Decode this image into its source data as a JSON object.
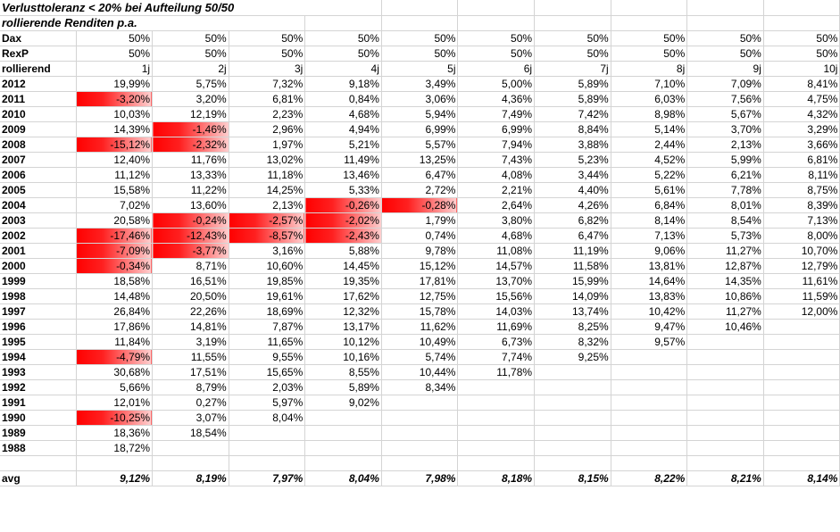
{
  "title1": "Verlusttoleranz < 20% bei Aufteilung 50/50",
  "title2": "rollierende Renditen p.a.",
  "header_rows": [
    {
      "label": "Dax",
      "cells": [
        "50%",
        "50%",
        "50%",
        "50%",
        "50%",
        "50%",
        "50%",
        "50%",
        "50%",
        "50%"
      ]
    },
    {
      "label": "RexP",
      "cells": [
        "50%",
        "50%",
        "50%",
        "50%",
        "50%",
        "50%",
        "50%",
        "50%",
        "50%",
        "50%"
      ]
    },
    {
      "label": "rollierend",
      "cells": [
        "1j",
        "2j",
        "3j",
        "4j",
        "5j",
        "6j",
        "7j",
        "8j",
        "9j",
        "10j"
      ]
    }
  ],
  "year_rows": [
    {
      "label": "2012",
      "cells": [
        "19,99%",
        "5,75%",
        "7,32%",
        "9,18%",
        "3,49%",
        "5,00%",
        "5,89%",
        "7,10%",
        "7,09%",
        "8,41%"
      ]
    },
    {
      "label": "2011",
      "cells": [
        "-3,20%",
        "3,20%",
        "6,81%",
        "0,84%",
        "3,06%",
        "4,36%",
        "5,89%",
        "6,03%",
        "7,56%",
        "4,75%"
      ]
    },
    {
      "label": "2010",
      "cells": [
        "10,03%",
        "12,19%",
        "2,23%",
        "4,68%",
        "5,94%",
        "7,49%",
        "7,42%",
        "8,98%",
        "5,67%",
        "4,32%"
      ]
    },
    {
      "label": "2009",
      "cells": [
        "14,39%",
        "-1,46%",
        "2,96%",
        "4,94%",
        "6,99%",
        "6,99%",
        "8,84%",
        "5,14%",
        "3,70%",
        "3,29%"
      ]
    },
    {
      "label": "2008",
      "cells": [
        "-15,12%",
        "-2,32%",
        "1,97%",
        "5,21%",
        "5,57%",
        "7,94%",
        "3,88%",
        "2,44%",
        "2,13%",
        "3,66%"
      ]
    },
    {
      "label": "2007",
      "cells": [
        "12,40%",
        "11,76%",
        "13,02%",
        "11,49%",
        "13,25%",
        "7,43%",
        "5,23%",
        "4,52%",
        "5,99%",
        "6,81%"
      ]
    },
    {
      "label": "2006",
      "cells": [
        "11,12%",
        "13,33%",
        "11,18%",
        "13,46%",
        "6,47%",
        "4,08%",
        "3,44%",
        "5,22%",
        "6,21%",
        "8,11%"
      ]
    },
    {
      "label": "2005",
      "cells": [
        "15,58%",
        "11,22%",
        "14,25%",
        "5,33%",
        "2,72%",
        "2,21%",
        "4,40%",
        "5,61%",
        "7,78%",
        "8,75%"
      ]
    },
    {
      "label": "2004",
      "cells": [
        "7,02%",
        "13,60%",
        "2,13%",
        "-0,26%",
        "-0,28%",
        "2,64%",
        "4,26%",
        "6,84%",
        "8,01%",
        "8,39%"
      ]
    },
    {
      "label": "2003",
      "cells": [
        "20,58%",
        "-0,24%",
        "-2,57%",
        "-2,02%",
        "1,79%",
        "3,80%",
        "6,82%",
        "8,14%",
        "8,54%",
        "7,13%"
      ]
    },
    {
      "label": "2002",
      "cells": [
        "-17,46%",
        "-12,43%",
        "-8,57%",
        "-2,43%",
        "0,74%",
        "4,68%",
        "6,47%",
        "7,13%",
        "5,73%",
        "8,00%"
      ]
    },
    {
      "label": "2001",
      "cells": [
        "-7,09%",
        "-3,77%",
        "3,16%",
        "5,88%",
        "9,78%",
        "11,08%",
        "11,19%",
        "9,06%",
        "11,27%",
        "10,70%"
      ]
    },
    {
      "label": "2000",
      "cells": [
        "-0,34%",
        "8,71%",
        "10,60%",
        "14,45%",
        "15,12%",
        "14,57%",
        "11,58%",
        "13,81%",
        "12,87%",
        "12,79%"
      ]
    },
    {
      "label": "1999",
      "cells": [
        "18,58%",
        "16,51%",
        "19,85%",
        "19,35%",
        "17,81%",
        "13,70%",
        "15,99%",
        "14,64%",
        "14,35%",
        "11,61%"
      ]
    },
    {
      "label": "1998",
      "cells": [
        "14,48%",
        "20,50%",
        "19,61%",
        "17,62%",
        "12,75%",
        "15,56%",
        "14,09%",
        "13,83%",
        "10,86%",
        "11,59%"
      ]
    },
    {
      "label": "1997",
      "cells": [
        "26,84%",
        "22,26%",
        "18,69%",
        "12,32%",
        "15,78%",
        "14,03%",
        "13,74%",
        "10,42%",
        "11,27%",
        "12,00%"
      ]
    },
    {
      "label": "1996",
      "cells": [
        "17,86%",
        "14,81%",
        "7,87%",
        "13,17%",
        "11,62%",
        "11,69%",
        "8,25%",
        "9,47%",
        "10,46%",
        ""
      ]
    },
    {
      "label": "1995",
      "cells": [
        "11,84%",
        "3,19%",
        "11,65%",
        "10,12%",
        "10,49%",
        "6,73%",
        "8,32%",
        "9,57%",
        "",
        ""
      ]
    },
    {
      "label": "1994",
      "cells": [
        "-4,79%",
        "11,55%",
        "9,55%",
        "10,16%",
        "5,74%",
        "7,74%",
        "9,25%",
        "",
        "",
        ""
      ]
    },
    {
      "label": "1993",
      "cells": [
        "30,68%",
        "17,51%",
        "15,65%",
        "8,55%",
        "10,44%",
        "11,78%",
        "",
        "",
        "",
        ""
      ]
    },
    {
      "label": "1992",
      "cells": [
        "5,66%",
        "8,79%",
        "2,03%",
        "5,89%",
        "8,34%",
        "",
        "",
        "",
        "",
        ""
      ]
    },
    {
      "label": "1991",
      "cells": [
        "12,01%",
        "0,27%",
        "5,97%",
        "9,02%",
        "",
        "",
        "",
        "",
        "",
        ""
      ]
    },
    {
      "label": "1990",
      "cells": [
        "-10,25%",
        "3,07%",
        "8,04%",
        "",
        "",
        "",
        "",
        "",
        "",
        ""
      ]
    },
    {
      "label": "1989",
      "cells": [
        "18,36%",
        "18,54%",
        "",
        "",
        "",
        "",
        "",
        "",
        "",
        ""
      ]
    },
    {
      "label": "1988",
      "cells": [
        "18,72%",
        "",
        "",
        "",
        "",
        "",
        "",
        "",
        "",
        ""
      ]
    }
  ],
  "avg_row": {
    "label": "avg",
    "cells": [
      "9,12%",
      "8,19%",
      "7,97%",
      "8,04%",
      "7,98%",
      "8,18%",
      "8,15%",
      "8,22%",
      "8,21%",
      "8,14%"
    ]
  }
}
